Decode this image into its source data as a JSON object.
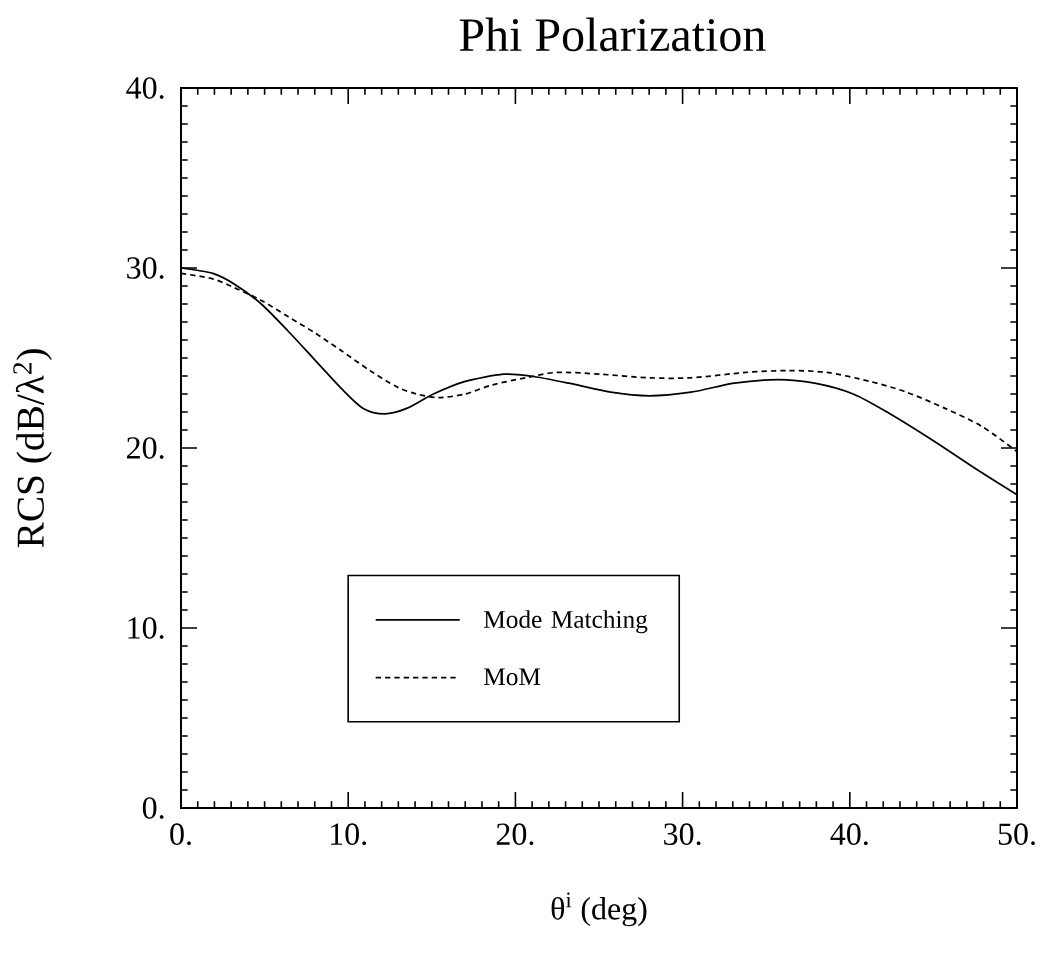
{
  "chart_data": {
    "type": "line",
    "title": "Phi Polarization",
    "xlabel": "θ$^{i}$ (deg)",
    "ylabel": "RCS (dB/λ$^{2}$)",
    "xlim": [
      0,
      50
    ],
    "ylim": [
      0,
      40
    ],
    "xticks": [
      {
        "value": 0,
        "label": "0."
      },
      {
        "value": 10,
        "label": "10."
      },
      {
        "value": 20,
        "label": "20."
      },
      {
        "value": 30,
        "label": "30."
      },
      {
        "value": 40,
        "label": "40."
      },
      {
        "value": 50,
        "label": "50."
      }
    ],
    "yticks": [
      {
        "value": 0,
        "label": "0."
      },
      {
        "value": 10,
        "label": "10."
      },
      {
        "value": 20,
        "label": "20."
      },
      {
        "value": 30,
        "label": "30."
      },
      {
        "value": 40,
        "label": "40."
      }
    ],
    "legend": "bottom left",
    "series": [
      {
        "name": "Mode Matching",
        "color": "#000000",
        "line_style": "solid",
        "x": [
          0,
          1.9,
          3.2,
          4.8,
          6.4,
          8.0,
          9.6,
          10.9,
          12.2,
          13.5,
          15.1,
          17.0,
          19.3,
          20.9,
          23.2,
          25.7,
          28.0,
          30.5,
          33.1,
          35.7,
          37.9,
          40.2,
          42.4,
          45.0,
          47.6,
          50
        ],
        "values": [
          30.0,
          29.7,
          29.1,
          28.0,
          26.5,
          24.9,
          23.3,
          22.2,
          21.9,
          22.2,
          23.0,
          23.7,
          24.1,
          24.0,
          23.6,
          23.1,
          22.9,
          23.1,
          23.6,
          23.8,
          23.6,
          23.0,
          21.9,
          20.4,
          18.8,
          17.4
        ]
      },
      {
        "name": "MoM",
        "color": "#000000",
        "line_style": "dashed",
        "x": [
          0,
          1.9,
          3.2,
          4.8,
          6.4,
          8.0,
          9.6,
          11.3,
          12.9,
          14.1,
          15.4,
          17.0,
          18.6,
          20.6,
          22.5,
          25.1,
          28.0,
          30.5,
          33.8,
          36.3,
          38.6,
          41.2,
          43.4,
          45.7,
          47.9,
          50
        ],
        "values": [
          29.7,
          29.4,
          28.9,
          28.2,
          27.3,
          26.4,
          25.4,
          24.3,
          23.4,
          23.0,
          22.8,
          23.0,
          23.5,
          23.9,
          24.2,
          24.1,
          23.9,
          23.9,
          24.2,
          24.3,
          24.2,
          23.7,
          23.1,
          22.2,
          21.2,
          19.8
        ]
      }
    ]
  }
}
